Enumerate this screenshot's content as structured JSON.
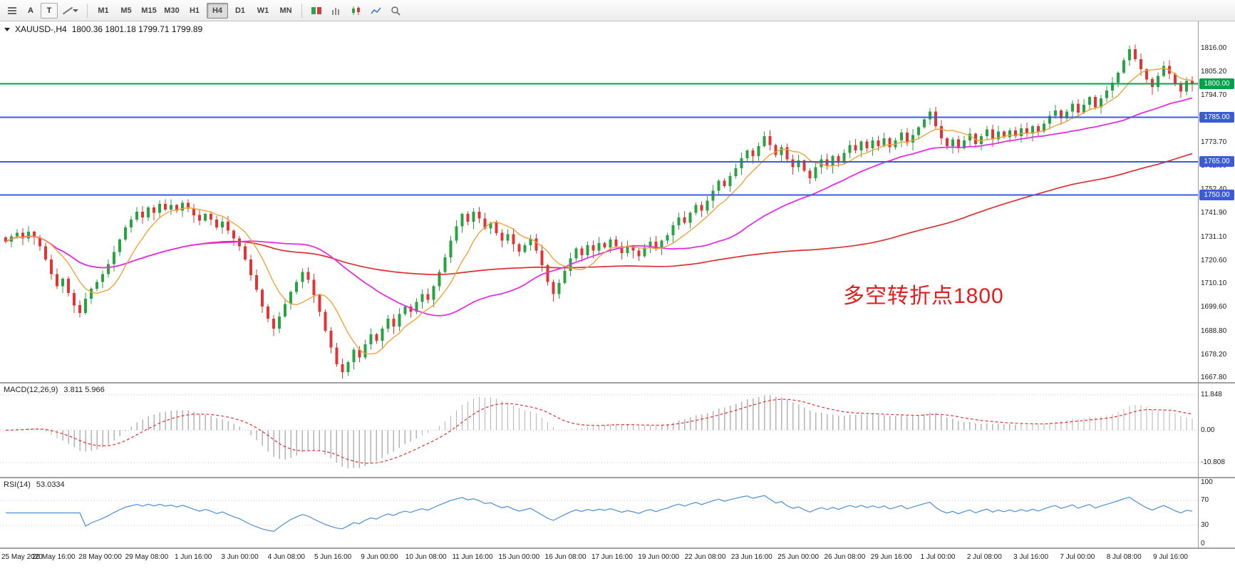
{
  "toolbar": {
    "annotate_label": "A",
    "text_tool_label": "T",
    "timeframes": [
      {
        "label": "M1",
        "active": false
      },
      {
        "label": "M5",
        "active": false
      },
      {
        "label": "M15",
        "active": false
      },
      {
        "label": "M30",
        "active": false
      },
      {
        "label": "H1",
        "active": false
      },
      {
        "label": "H4",
        "active": true
      },
      {
        "label": "D1",
        "active": false
      },
      {
        "label": "W1",
        "active": false
      },
      {
        "label": "MN",
        "active": false
      }
    ],
    "icons": [
      "chart-list-icon",
      "annotate-letter",
      "text-tool",
      "line-tools",
      "chevron-down",
      "new-order-icon",
      "bar-chart-icon",
      "candlestick-chart-icon",
      "line-chart-icon",
      "zoom-in-icon"
    ]
  },
  "chart": {
    "symbol_line": {
      "symbol": "XAUUSD-,H4",
      "ohlc": "1800.36 1801.18 1799.71 1799.89"
    },
    "annotation": {
      "text": "多空转折点1800",
      "color": "#e51c1c"
    },
    "levels": [
      {
        "value": 1800,
        "badge": "1800.00",
        "color": "#00a148"
      },
      {
        "value": 1785,
        "badge": "1785.00",
        "color": "#3c5bd7"
      },
      {
        "value": 1765,
        "badge": "1765.00",
        "color": "#3c5bd7"
      },
      {
        "value": 1750,
        "badge": "1750.00",
        "color": "#3c5bd7"
      }
    ],
    "price_axis_labels": [
      "1816.00",
      "1805.20",
      "1794.70",
      "1784.20",
      "1773.70",
      "1762.90",
      "1752.40",
      "1741.90",
      "1731.10",
      "1720.60",
      "1710.10",
      "1699.60",
      "1688.80",
      "1678.20",
      "1667.80"
    ],
    "time_axis_labels": [
      "25 May 2020",
      "26 May 16:00",
      "28 May 00:00",
      "29 May 08:00",
      "1 Jun 16:00",
      "3 Jun 00:00",
      "4 Jun 08:00",
      "5 Jun 16:00",
      "9 Jun 00:00",
      "10 Jun 08:00",
      "11 Jun 16:00",
      "15 Jun 00:00",
      "16 Jun 08:00",
      "17 Jun 16:00",
      "19 Jun 00:00",
      "22 Jun 08:00",
      "23 Jun 16:00",
      "25 Jun 00:00",
      "26 Jun 08:00",
      "29 Jun 16:00",
      "1 Jul 00:00",
      "2 Jul 08:00",
      "3 Jul 16:00",
      "7 Jul 00:00",
      "8 Jul 08:00",
      "9 Jul 16:00"
    ],
    "price_range": {
      "min": 1666,
      "max": 1828
    }
  },
  "macd_panel": {
    "title": "MACD(12,26,9)",
    "values": "3.811 5.966",
    "axis_labels": [
      "11.848",
      "0.00",
      "-10.808"
    ]
  },
  "rsi_panel": {
    "title": "RSI(14)",
    "value": "53.0334",
    "axis_labels": [
      "100",
      "70",
      "30",
      "0"
    ],
    "dotted_levels": [
      70,
      30
    ]
  },
  "colors": {
    "candle_up": "#27a342",
    "candle_down": "#e33434",
    "ma_fast_orange": "#efa33a",
    "ma_mid_magenta": "#e32ee3",
    "ma_slow_red": "#dc3030",
    "macd_histogram": "#b3b3b3",
    "macd_signal": "#e03030",
    "rsi_line": "#4a8fd4",
    "level_green": "#00a148",
    "level_blue": "#3c5bd7"
  },
  "chart_data": {
    "type": "candlestick",
    "symbol": "XAUUSD",
    "timeframe": "H4",
    "current_ohlc": {
      "open": 1800.36,
      "high": 1801.18,
      "low": 1799.71,
      "close": 1799.89
    },
    "y_axis_range": [
      1667.8,
      1816.0
    ],
    "horizontal_levels": [
      1800,
      1785,
      1765,
      1750
    ],
    "annotation": "多空转折点1800",
    "indicators": {
      "moving_averages": [
        {
          "name": "fast MA",
          "color": "#efa33a"
        },
        {
          "name": "mid MA",
          "color": "#e32ee3"
        },
        {
          "name": "slow MA",
          "color": "#dc3030"
        }
      ],
      "macd": {
        "fast": 12,
        "slow": 26,
        "signal": 9,
        "current_macd": 3.811,
        "current_signal": 5.966,
        "axis": [
          11.848,
          0.0,
          -10.808
        ]
      },
      "rsi": {
        "period": 14,
        "current": 53.0334,
        "levels": [
          70,
          30
        ],
        "axis": [
          100,
          70,
          30,
          0
        ]
      }
    },
    "x_labels": [
      "25 May 2020",
      "26 May 16:00",
      "28 May 00:00",
      "29 May 08:00",
      "1 Jun 16:00",
      "3 Jun 00:00",
      "4 Jun 08:00",
      "5 Jun 16:00",
      "9 Jun 00:00",
      "10 Jun 08:00",
      "11 Jun 16:00",
      "15 Jun 00:00",
      "16 Jun 08:00",
      "17 Jun 16:00",
      "19 Jun 00:00",
      "22 Jun 08:00",
      "23 Jun 16:00",
      "25 Jun 00:00",
      "26 Jun 08:00",
      "29 Jun 16:00",
      "1 Jul 00:00",
      "2 Jul 08:00",
      "3 Jul 16:00",
      "7 Jul 00:00",
      "8 Jul 08:00",
      "9 Jul 16:00"
    ],
    "closes": [
      1729.0,
      1731.5,
      1733.0,
      1730.5,
      1733.5,
      1731.0,
      1727.0,
      1721.0,
      1714.5,
      1709.0,
      1712.5,
      1706.0,
      1700.5,
      1697.0,
      1703.5,
      1708.0,
      1711.0,
      1714.5,
      1719.0,
      1724.5,
      1730.0,
      1735.5,
      1739.0,
      1742.5,
      1740.0,
      1744.5,
      1742.0,
      1746.0,
      1743.5,
      1745.5,
      1743.0,
      1746.5,
      1744.0,
      1741.0,
      1738.5,
      1741.5,
      1739.0,
      1735.5,
      1738.0,
      1734.0,
      1730.5,
      1727.0,
      1721.0,
      1714.0,
      1707.5,
      1700.0,
      1694.5,
      1690.0,
      1695.5,
      1701.0,
      1706.5,
      1711.0,
      1715.5,
      1712.0,
      1705.0,
      1697.5,
      1689.0,
      1681.5,
      1674.0,
      1670.5,
      1675.0,
      1680.5,
      1677.0,
      1683.0,
      1687.5,
      1684.5,
      1690.0,
      1694.5,
      1691.0,
      1696.5,
      1700.0,
      1697.5,
      1702.0,
      1705.5,
      1703.0,
      1709.0,
      1715.5,
      1722.0,
      1729.5,
      1736.0,
      1741.5,
      1738.0,
      1742.5,
      1739.5,
      1735.0,
      1737.5,
      1733.0,
      1729.5,
      1732.5,
      1728.0,
      1724.5,
      1727.5,
      1730.5,
      1725.0,
      1718.5,
      1711.0,
      1705.5,
      1710.5,
      1716.0,
      1721.5,
      1726.0,
      1723.0,
      1727.5,
      1725.0,
      1728.5,
      1726.5,
      1730.0,
      1727.0,
      1724.0,
      1727.0,
      1725.0,
      1722.5,
      1726.5,
      1729.0,
      1726.0,
      1729.5,
      1732.0,
      1736.5,
      1740.0,
      1737.5,
      1742.0,
      1745.5,
      1743.0,
      1747.5,
      1752.0,
      1756.5,
      1754.0,
      1758.5,
      1762.0,
      1766.5,
      1770.0,
      1767.5,
      1772.0,
      1776.5,
      1772.5,
      1768.0,
      1771.5,
      1766.0,
      1762.5,
      1765.5,
      1761.0,
      1757.5,
      1762.5,
      1766.0,
      1763.0,
      1767.5,
      1764.5,
      1769.0,
      1772.5,
      1770.0,
      1774.0,
      1771.0,
      1774.5,
      1772.0,
      1775.5,
      1771.5,
      1774.5,
      1778.0,
      1773.5,
      1777.0,
      1780.5,
      1784.0,
      1787.5,
      1781.0,
      1775.5,
      1772.0,
      1775.0,
      1771.0,
      1774.5,
      1777.5,
      1773.0,
      1776.5,
      1779.5,
      1775.0,
      1778.5,
      1776.0,
      1779.0,
      1776.5,
      1780.0,
      1777.5,
      1781.0,
      1778.5,
      1782.0,
      1785.5,
      1788.0,
      1784.5,
      1787.5,
      1791.0,
      1787.0,
      1790.5,
      1794.0,
      1789.5,
      1793.5,
      1797.0,
      1800.5,
      1805.0,
      1810.5,
      1815.5,
      1811.0,
      1806.5,
      1802.0,
      1798.5,
      1803.5,
      1808.0,
      1804.5,
      1800.0,
      1796.5,
      1801.2,
      1799.89
    ]
  }
}
